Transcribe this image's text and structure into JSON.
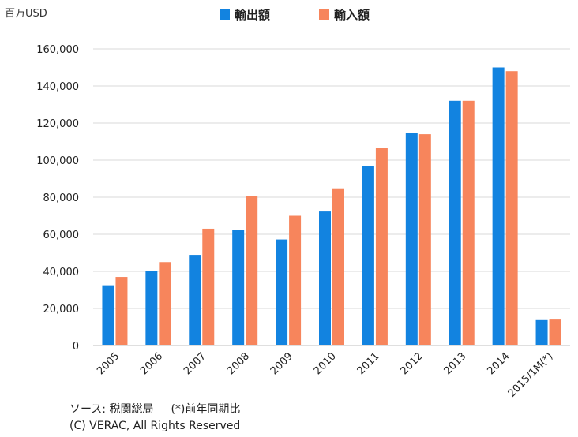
{
  "chart_data": {
    "type": "bar",
    "unit_label": "百万USD",
    "categories": [
      "2005",
      "2006",
      "2007",
      "2008",
      "2009",
      "2010",
      "2011",
      "2012",
      "2013",
      "2014",
      "2015/1M(*)"
    ],
    "series": [
      {
        "name": "輸出額",
        "color": "#1283e0",
        "values": [
          32500,
          40000,
          48900,
          62500,
          57200,
          72300,
          96800,
          114500,
          132000,
          150000,
          13700
        ]
      },
      {
        "name": "輸入額",
        "color": "#f7855c",
        "values": [
          37000,
          45000,
          63000,
          80600,
          70000,
          84800,
          106800,
          114000,
          132000,
          148000,
          14000
        ]
      }
    ],
    "ylim": [
      0,
      160000
    ],
    "yticks": [
      "0",
      "20,000",
      "40,000",
      "60,000",
      "80,000",
      "100,000",
      "120,000",
      "140,000",
      "160,000"
    ],
    "ytick_values": [
      0,
      20000,
      40000,
      60000,
      80000,
      100000,
      120000,
      140000,
      160000
    ],
    "grid": true,
    "legend_position": "top-center"
  },
  "footer": {
    "source": "ソース: 税関総局",
    "note": "(*)前年同期比",
    "copyright": "(C) VERAC, All Rights Reserved"
  }
}
